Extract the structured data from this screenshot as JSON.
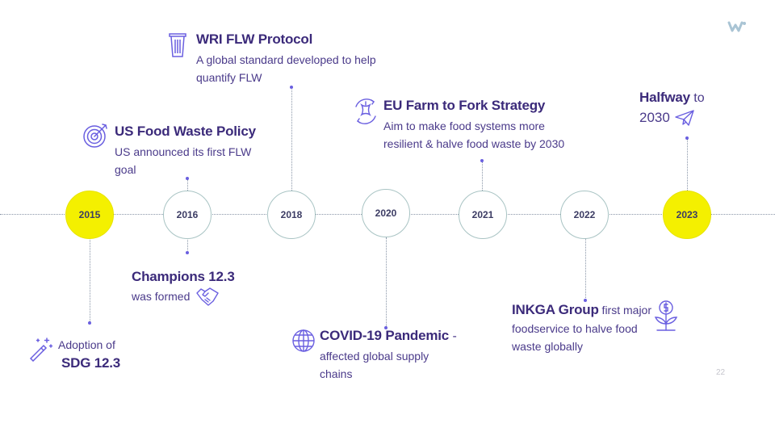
{
  "colors": {
    "highlight": "#f4f000",
    "text": "#3b2a7a",
    "accent": "#6a5fe0"
  },
  "years": [
    "2015",
    "2016",
    "2018",
    "2020",
    "2021",
    "2022",
    "2023"
  ],
  "events": {
    "sdg": {
      "line1": "Adoption of",
      "line2": "SDG 12.3",
      "icon": "magic-wand-icon"
    },
    "us_policy": {
      "title": "US Food Waste Policy",
      "desc1": "US announced its first FLW",
      "desc2": "goal",
      "icon": "target-icon"
    },
    "champions": {
      "title": "Champions 12.3",
      "desc": "was formed",
      "icon": "handshake-icon"
    },
    "wri": {
      "title": "WRI FLW Protocol",
      "desc1": "A global standard developed to help",
      "desc2": "quantify FLW",
      "icon": "trash-bin-icon"
    },
    "covid": {
      "title": "COVID-19 Pandemic",
      "suffix": " -",
      "desc1": "affected global supply",
      "desc2": "chains",
      "icon": "globe-icon"
    },
    "eu": {
      "title": "EU Farm to Fork Strategy",
      "desc1": "Aim to make food systems more",
      "desc2": "resilient & halve food waste by 2030",
      "icon": "apple-core-icon"
    },
    "inkga": {
      "title": "INKGA Group",
      "desc0": " first major",
      "desc1": "foodservice to halve food",
      "desc2": "waste globally",
      "icon": "money-plant-icon"
    },
    "halfway": {
      "title": "Halfway",
      "to": " to",
      "year": "2030",
      "icon": "paper-plane-icon"
    }
  },
  "page_number": "22",
  "logo": "brand-logo"
}
